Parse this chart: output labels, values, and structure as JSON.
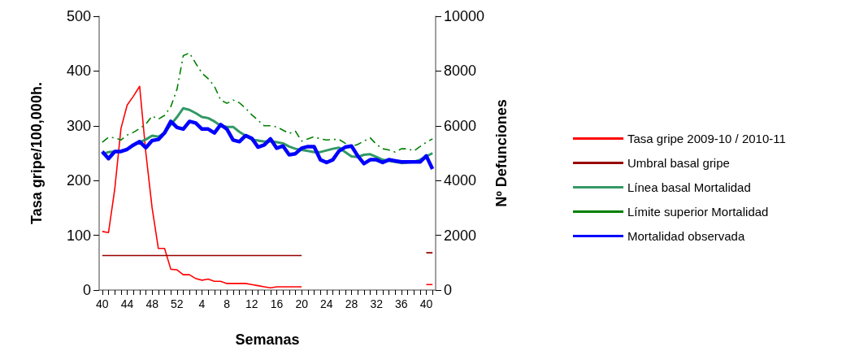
{
  "chart_data": {
    "type": "line",
    "xlabel": "Semanas",
    "ylabel": "Tasa gripe/100,000h.",
    "y2label": "Nº Defunciones",
    "categories": [
      "40",
      null,
      null,
      null,
      "44",
      null,
      null,
      null,
      "48",
      null,
      null,
      null,
      "52",
      null,
      null,
      null,
      "4",
      null,
      null,
      null,
      "8",
      null,
      null,
      null,
      "12",
      null,
      null,
      null,
      "16",
      null,
      null,
      null,
      "20",
      null,
      null,
      null,
      "24",
      null,
      null,
      null,
      "28",
      null,
      null,
      null,
      "32",
      null,
      null,
      null,
      "36",
      null,
      null,
      null,
      "40",
      null
    ],
    "ylim": [
      0,
      500
    ],
    "yticks": [
      0,
      100,
      200,
      300,
      400,
      500
    ],
    "y2lim": [
      0,
      10000
    ],
    "y2ticks": [
      0,
      2000,
      4000,
      6000,
      8000,
      10000
    ],
    "grid": false,
    "legend": "right",
    "marker": "none",
    "series": [
      {
        "name": "Tasa gripe 2009-10 / 2010-11",
        "color": "#ff0000",
        "line_style": "solid",
        "values": [
          107,
          105,
          184,
          295,
          338,
          354,
          372,
          250,
          150,
          76,
          76,
          38,
          37,
          28,
          28,
          21,
          18,
          20,
          16,
          16,
          12,
          12,
          12,
          12,
          10,
          8,
          6,
          4,
          6,
          6,
          6,
          6,
          6,
          null,
          null,
          null,
          null,
          null,
          null,
          null,
          null,
          null,
          null,
          null,
          null,
          null,
          null,
          null,
          null,
          null,
          null,
          null,
          10,
          10
        ]
      },
      {
        "name": "Umbral basal gripe",
        "color": "#990000",
        "line_style": "solid",
        "values": [
          63,
          63,
          63,
          63,
          63,
          63,
          63,
          63,
          63,
          63,
          63,
          63,
          63,
          63,
          63,
          63,
          63,
          63,
          63,
          63,
          63,
          63,
          63,
          63,
          63,
          63,
          63,
          63,
          63,
          63,
          63,
          63,
          63,
          null,
          null,
          null,
          null,
          null,
          null,
          null,
          null,
          null,
          null,
          null,
          null,
          null,
          null,
          null,
          null,
          null,
          null,
          null,
          68,
          68
        ]
      },
      {
        "name": "Línea basal Mortalidad",
        "color": "#339966",
        "line_style": "solid",
        "axis": "y2",
        "values": [
          4960,
          5040,
          5060,
          5080,
          5140,
          5300,
          5400,
          5500,
          5640,
          5600,
          5740,
          6040,
          6320,
          6640,
          6580,
          6460,
          6320,
          6280,
          6160,
          6000,
          5960,
          5960,
          5780,
          5640,
          5500,
          5460,
          5420,
          5440,
          5400,
          5360,
          5240,
          5160,
          5120,
          5080,
          5040,
          5040,
          5100,
          5160,
          5200,
          5040,
          4880,
          4860,
          4940,
          4960,
          4860,
          4760,
          4720,
          4680,
          4640,
          4660,
          4680,
          4760,
          4880,
          5000
        ]
      },
      {
        "name": "Límite superior Mortalidad",
        "color": "#008000",
        "line_style": "dashdot",
        "axis": "y2",
        "values": [
          5400,
          5580,
          5560,
          5480,
          5660,
          5760,
          5900,
          6060,
          6360,
          6240,
          6380,
          6700,
          7340,
          8560,
          8660,
          8280,
          7920,
          7720,
          7440,
          6940,
          6820,
          6940,
          6840,
          6640,
          6400,
          6200,
          6000,
          6000,
          5960,
          5840,
          5720,
          5800,
          5440,
          5520,
          5600,
          5520,
          5480,
          5500,
          5500,
          5360,
          5240,
          5320,
          5440,
          5560,
          5320,
          5160,
          5120,
          5040,
          5160,
          5160,
          5080,
          5240,
          5400,
          5520
        ]
      },
      {
        "name": "Mortalidad observada",
        "color": "#0000ff",
        "line_style": "solid",
        "axis": "y2",
        "values": [
          5060,
          4800,
          5060,
          5060,
          5140,
          5300,
          5420,
          5200,
          5460,
          5500,
          5740,
          6160,
          5940,
          5880,
          6160,
          6100,
          5880,
          5880,
          5740,
          6040,
          5880,
          5480,
          5420,
          5640,
          5540,
          5220,
          5300,
          5520,
          5180,
          5260,
          4940,
          4980,
          5180,
          5240,
          5240,
          4760,
          4660,
          4760,
          5080,
          5220,
          5260,
          4900,
          4620,
          4760,
          4760,
          4660,
          4760,
          4720,
          4680,
          4680,
          4680,
          4680,
          4900,
          4420
        ]
      }
    ]
  }
}
